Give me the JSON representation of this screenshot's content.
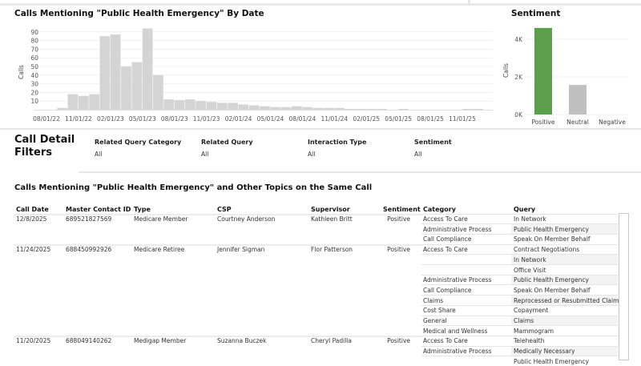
{
  "timeline": {
    "title": "Calls Mentioning \"Public Health Emergency\" By Date",
    "chart_data": {
      "type": "bar",
      "ylabel": "Calls",
      "xlabel": "",
      "ylim": [
        0,
        95
      ],
      "yticks": [
        10,
        20,
        30,
        40,
        50,
        60,
        70,
        80,
        90
      ],
      "xticks": [
        "08/01/22",
        "11/01/22",
        "02/01/23",
        "05/01/23",
        "08/01/23",
        "11/01/23",
        "02/01/24",
        "05/01/24",
        "08/01/24",
        "11/01/24",
        "02/01/25",
        "05/01/25",
        "08/01/25",
        "11/01/25"
      ],
      "x": [
        "2022-09",
        "2022-10",
        "2022-11",
        "2022-12",
        "2023-01",
        "2023-02",
        "2023-03",
        "2023-04",
        "2023-05",
        "2023-06",
        "2023-07",
        "2023-08",
        "2023-09",
        "2023-10",
        "2023-11",
        "2023-12",
        "2024-01",
        "2024-02",
        "2024-03",
        "2024-04",
        "2024-05",
        "2024-06",
        "2024-07",
        "2024-08",
        "2024-09",
        "2024-10",
        "2024-11",
        "2024-12",
        "2025-01",
        "2025-02",
        "2025-03",
        "2025-04",
        "2025-05",
        "2025-06",
        "2025-07",
        "2025-08",
        "2025-09",
        "2025-10",
        "2025-11",
        "2025-12"
      ],
      "values": [
        2,
        18,
        16,
        18,
        85,
        87,
        50,
        55,
        94,
        40,
        12,
        11,
        12,
        10,
        9,
        8,
        8,
        6,
        5,
        4,
        3,
        3,
        4,
        3,
        2,
        2,
        2,
        1,
        1,
        1,
        1,
        0,
        1,
        0,
        0,
        0,
        0,
        0,
        1,
        1
      ],
      "color": "#d4d4d4",
      "grid": true
    }
  },
  "sentiment": {
    "title": "Sentiment",
    "chart_data": {
      "type": "bar",
      "ylabel": "Calls",
      "categories": [
        "Positive",
        "Neutral",
        "Negative"
      ],
      "values": [
        4600,
        1570,
        0
      ],
      "yticks": [
        "0K",
        "2K",
        "4K"
      ],
      "ylim": [
        0,
        4800
      ],
      "colors": [
        "#5a9e4e",
        "#c0c0c0",
        "#c0c0c0"
      ]
    }
  },
  "filters": {
    "title_line1": "Call Detail",
    "title_line2": "Filters",
    "items": [
      {
        "label": "Related Query Category",
        "value": "All"
      },
      {
        "label": "Related Query",
        "value": "All"
      },
      {
        "label": "Interaction Type",
        "value": "All"
      },
      {
        "label": "Sentiment",
        "value": "All"
      }
    ]
  },
  "table": {
    "title": "Calls Mentioning \"Public Health Emergency\" and Other Topics on the Same Call",
    "headers": [
      "Call Date",
      "Master Contact ID",
      "Type",
      "CSP",
      "Supervisor",
      "Sentiment",
      "Category",
      "Query"
    ],
    "rows": [
      {
        "date": "12/8/2025",
        "id": "689521827569",
        "type": "Medicare Member",
        "csp": "Courtney Anderson",
        "supervisor": "Kathleen Britt",
        "sentiment": "Positive",
        "subs": [
          [
            "Access To Care",
            "In Network"
          ],
          [
            "Administrative Process",
            "Public Health Emergency"
          ],
          [
            "Call Compliance",
            "Speak On Member Behalf"
          ]
        ]
      },
      {
        "date": "11/24/2025",
        "id": "688450992926",
        "type": "Medicare Retiree",
        "csp": "Jennifer Sigman",
        "supervisor": "Flor Patterson",
        "sentiment": "Positive",
        "subs": [
          [
            "Access To Care",
            "Contract Negotiations"
          ],
          [
            "",
            "In Network"
          ],
          [
            "",
            "Office Visit"
          ],
          [
            "Administrative Process",
            "Public Health Emergency"
          ],
          [
            "Call Compliance",
            "Speak On Member Behalf"
          ],
          [
            "Claims",
            "Reprocessed or Resubmitted Claims"
          ],
          [
            "Cost Share",
            "Copayment"
          ],
          [
            "General",
            "Claims"
          ],
          [
            "Medical and Wellness",
            "Mammogram"
          ]
        ]
      },
      {
        "date": "11/20/2025",
        "id": "688049140262",
        "type": "Medigap Member",
        "csp": "Suzanna Buczek",
        "supervisor": "Cheryl Padilla",
        "sentiment": "Positive",
        "subs": [
          [
            "Access To Care",
            "Telehealth"
          ],
          [
            "Administrative Process",
            "Medically Necessary"
          ],
          [
            "",
            "Public Health Emergency"
          ]
        ]
      }
    ]
  }
}
